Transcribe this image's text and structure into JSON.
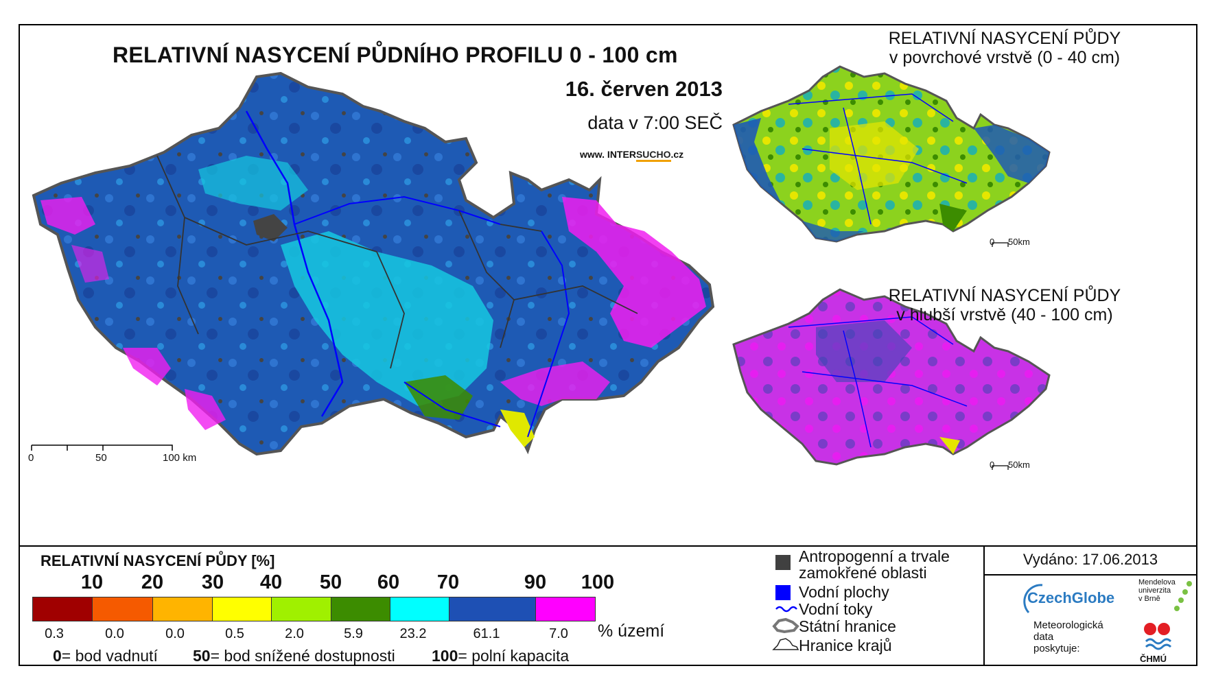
{
  "main_map": {
    "title": "RELATIVNÍ NASYCENÍ PŮDNÍHO PROFILU 0 - 100 cm",
    "date": "16. červen 2013",
    "time": "data v 7:00 SEČ",
    "website_prefix": "www. INTER",
    "website_accent": "SUCHO",
    "website_suffix": ".cz",
    "scale": [
      "0",
      "50",
      "100 km"
    ]
  },
  "surface_map": {
    "title_line1": "RELATIVNÍ NASYCENÍ PŮDY",
    "title_line2": "v povrchové vrstvě (0 - 40 cm)",
    "scale": [
      "0",
      "50km"
    ]
  },
  "deep_map": {
    "title_line1": "RELATIVNÍ NASYCENÍ PŮDY",
    "title_line2": "v hlubší vrstvě (40 - 100 cm)",
    "scale": [
      "0",
      "50km"
    ]
  },
  "legend": {
    "title": "RELATIVNÍ NASYCENÍ PŮDY [%]",
    "ticks": [
      "10",
      "20",
      "30",
      "40",
      "50",
      "60",
      "70",
      "90",
      "100"
    ],
    "classes": [
      {
        "color": "#a00000",
        "share": "0.3"
      },
      {
        "color": "#f55a00",
        "share": "0.0"
      },
      {
        "color": "#ffb400",
        "share": "0.0"
      },
      {
        "color": "#ffff00",
        "share": "0.5"
      },
      {
        "color": "#a0f000",
        "share": "2.0"
      },
      {
        "color": "#3c8c00",
        "share": "5.9"
      },
      {
        "color": "#00ffff",
        "share": "23.2"
      },
      {
        "color": "#1e50b4",
        "share": "61.1"
      },
      {
        "color": "#ff00ff",
        "share": "7.0"
      }
    ],
    "unit": "% území",
    "explain": [
      {
        "num": "0",
        "text": "= bod vadnutí"
      },
      {
        "num": "50",
        "text": "= bod snížené dostupnosti"
      },
      {
        "num": "100",
        "text": "= polní kapacita"
      }
    ],
    "symbols": {
      "anthro_line1": "Antropogenní a trvale",
      "anthro_line2": "zamokřené oblasti",
      "water_areas": "Vodní plochy",
      "rivers": "Vodní toky",
      "state_border": "Státní hranice",
      "regions_border": "Hranice krajů"
    },
    "colors": {
      "anthro": "#404040",
      "water": "#0000ff",
      "river": "#0000ff"
    }
  },
  "credits": {
    "issued": "Vydáno: 17.06.2013",
    "czechglobe": "CzechGlobe",
    "mendel": [
      "Mendelova",
      "univerzita",
      "v Brně"
    ],
    "meteo": [
      "Meteorologická",
      "data",
      "poskytuje:"
    ],
    "chmu": "ČHMÚ"
  }
}
